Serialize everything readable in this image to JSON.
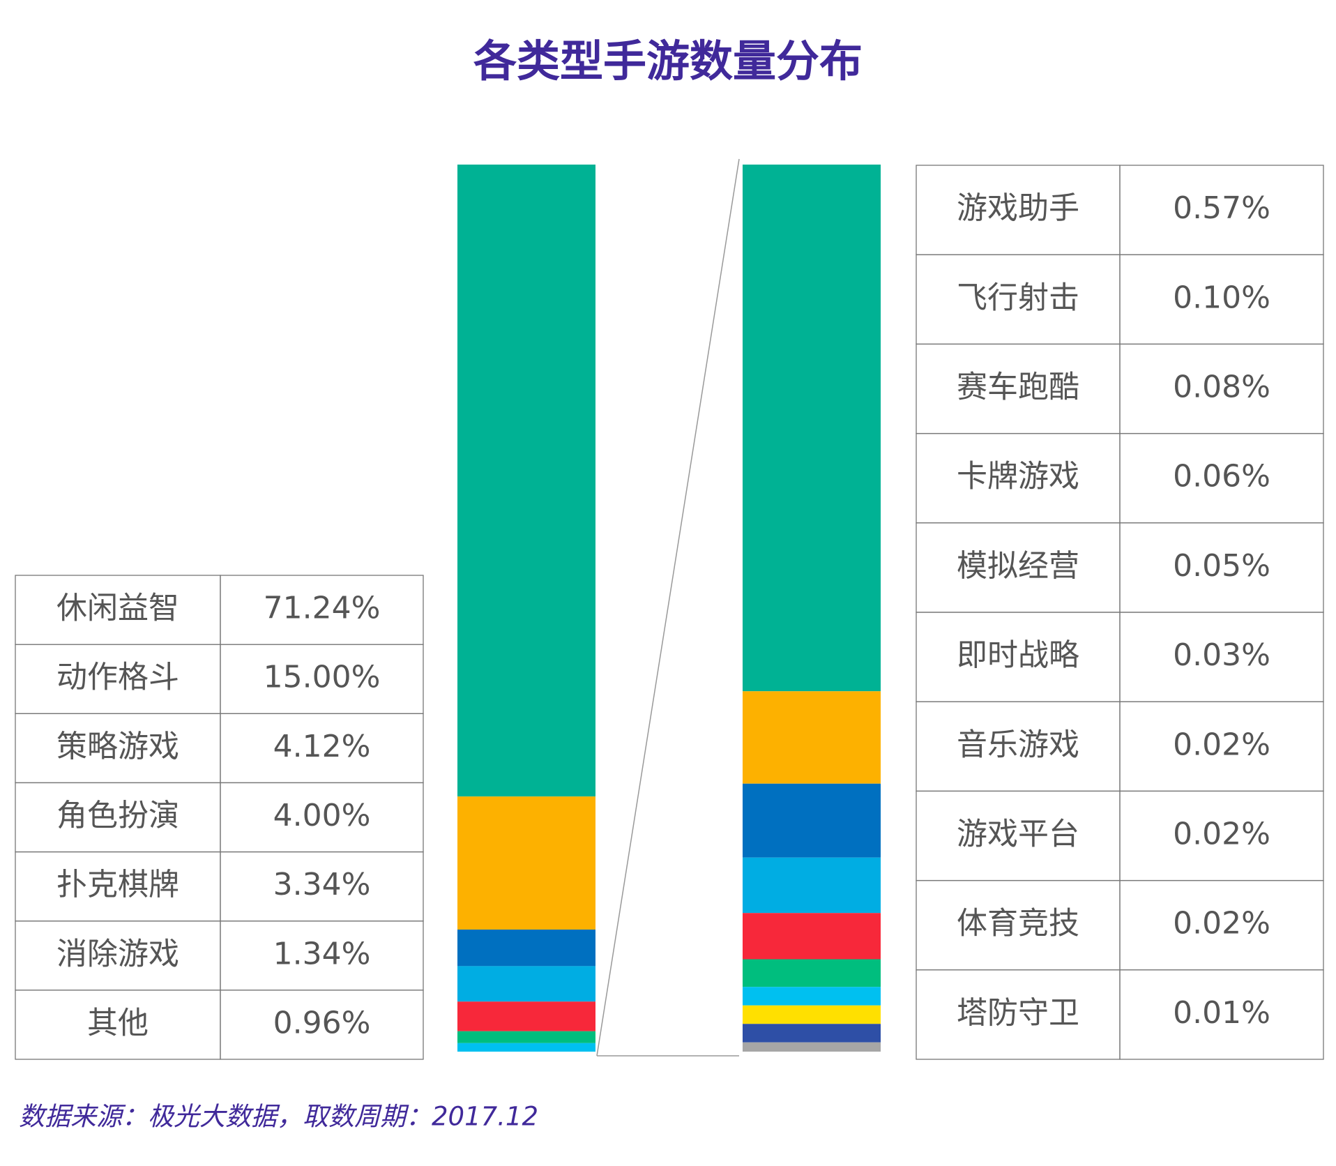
{
  "chart_data": [
    {
      "type": "stacked-bar",
      "title": "各类型手游数量分布",
      "categories": [
        "休闲益智",
        "动作格斗",
        "策略游戏",
        "角色扮演",
        "扑克棋牌",
        "消除游戏",
        "其他"
      ],
      "values": [
        71.24,
        15.0,
        4.12,
        4.0,
        3.34,
        1.34,
        0.96
      ],
      "value_labels": [
        "71.24%",
        "15.00%",
        "4.12%",
        "4.00%",
        "3.34%",
        "1.34%",
        "0.96%"
      ],
      "colors": [
        "#00b294",
        "#fdb100",
        "#0070c0",
        "#00ade3",
        "#f7283a",
        "#00be7e",
        "#00c0f0"
      ]
    },
    {
      "type": "stacked-bar",
      "categories": [
        "游戏助手",
        "飞行射击",
        "赛车跑酷",
        "卡牌游戏",
        "模拟经营",
        "即时战略",
        "音乐游戏",
        "游戏平台",
        "体育竞技",
        "塔防守卫"
      ],
      "values": [
        0.57,
        0.1,
        0.08,
        0.06,
        0.05,
        0.03,
        0.02,
        0.02,
        0.02,
        0.01
      ],
      "value_labels": [
        "0.57%",
        "0.10%",
        "0.08%",
        "0.06%",
        "0.05%",
        "0.03%",
        "0.02%",
        "0.02%",
        "0.02%",
        "0.01%"
      ],
      "colors": [
        "#00b294",
        "#fdb100",
        "#0070c0",
        "#00ade3",
        "#f7283a",
        "#00be7e",
        "#00c0f0",
        "#ffe000",
        "#2e4fa6",
        "#a6a6a6"
      ]
    }
  ],
  "source": "数据来源：极光大数据，取数周期：2017.12"
}
